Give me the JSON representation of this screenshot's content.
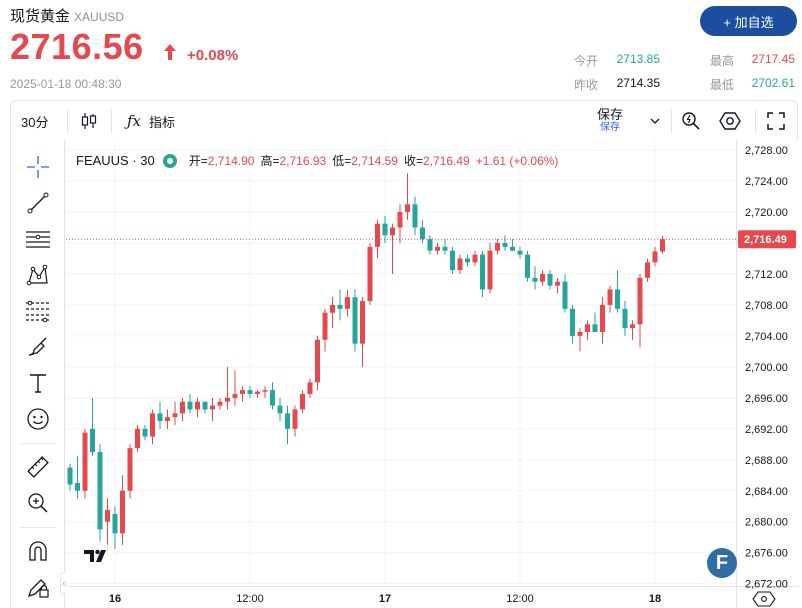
{
  "header": {
    "title": "现货黄金",
    "symbol": "XAUUSD",
    "price": "2716.56",
    "change_pct": "+0.08%",
    "timestamp": "2025-01-18 00:48:30",
    "add_button": "+ 加自选",
    "up_color": "#e5484d",
    "down_color": "#26a69a"
  },
  "stats": {
    "open_label": "今开",
    "open_value": "2713.85",
    "prev_label": "昨收",
    "prev_value": "2714.35",
    "high_label": "最高",
    "high_value": "2717.45",
    "low_label": "最低",
    "low_value": "2702.61"
  },
  "toolbar": {
    "interval": "30分",
    "indicators": "指标",
    "save": "保存",
    "save_sub": "保存"
  },
  "legend": {
    "symbol": "FEAUUS · 30",
    "open_label": "开=",
    "open_value": "2,714.90",
    "high_label": "高=",
    "high_value": "2,716.93",
    "low_label": "低=",
    "low_value": "2,714.59",
    "close_label": "收=",
    "close_value": "2,716.49",
    "change": "+1.61 (+0.06%)"
  },
  "left_tools": [
    "crosshair-icon",
    "trend-line-icon",
    "horizontal-lines-icon",
    "pattern-icon",
    "fib-icon",
    "brush-icon",
    "text-icon",
    "emoji-icon",
    "ruler-icon",
    "zoom-in-icon",
    "magnet-icon",
    "lock-pencil-icon"
  ],
  "chart_data": {
    "type": "candlestick",
    "interval": "30",
    "y_ticks": [
      2728,
      2724,
      2720,
      2716,
      2712,
      2708,
      2704,
      2700,
      2696,
      2692,
      2688,
      2684,
      2680,
      2676,
      2672
    ],
    "y_tick_labels": [
      "2,728.00",
      "2,724.00",
      "2,720.00",
      "2,716.00",
      "2,712.00",
      "2,708.00",
      "2,704.00",
      "2,700.00",
      "2,696.00",
      "2,692.00",
      "2,688.00",
      "2,684.00",
      "2,680.00",
      "2,676.00",
      "2,672.00"
    ],
    "ylim": [
      2671.7,
      2729.3
    ],
    "x_ticks": [
      {
        "index": 6,
        "label": "16"
      },
      {
        "index": 24,
        "label": "12:00"
      },
      {
        "index": 42,
        "label": "17"
      },
      {
        "index": 60,
        "label": "12:00"
      },
      {
        "index": 78,
        "label": "18"
      }
    ],
    "last_price_label": "2,716.49",
    "last_price": 2716.49,
    "candles": [
      {
        "o": 2687.0,
        "h": 2687.5,
        "l": 2684.0,
        "c": 2684.8
      },
      {
        "o": 2685.0,
        "h": 2688.5,
        "l": 2683.0,
        "c": 2684.0
      },
      {
        "o": 2684.0,
        "h": 2692.0,
        "l": 2683.0,
        "c": 2691.5
      },
      {
        "o": 2692.0,
        "h": 2696.0,
        "l": 2688.5,
        "c": 2689.0
      },
      {
        "o": 2689.0,
        "h": 2690.0,
        "l": 2677.0,
        "c": 2679.0
      },
      {
        "o": 2680.0,
        "h": 2683.0,
        "l": 2676.0,
        "c": 2681.5
      },
      {
        "o": 2681.0,
        "h": 2682.0,
        "l": 2676.5,
        "c": 2678.5
      },
      {
        "o": 2678.5,
        "h": 2686.0,
        "l": 2677.0,
        "c": 2684.0
      },
      {
        "o": 2684.0,
        "h": 2690.0,
        "l": 2683.0,
        "c": 2689.5
      },
      {
        "o": 2689.5,
        "h": 2692.5,
        "l": 2689.0,
        "c": 2692.0
      },
      {
        "o": 2692.0,
        "h": 2692.5,
        "l": 2690.5,
        "c": 2691.0
      },
      {
        "o": 2691.0,
        "h": 2694.5,
        "l": 2690.0,
        "c": 2694.0
      },
      {
        "o": 2694.0,
        "h": 2695.5,
        "l": 2692.0,
        "c": 2693.0
      },
      {
        "o": 2693.0,
        "h": 2694.5,
        "l": 2692.0,
        "c": 2693.5
      },
      {
        "o": 2693.5,
        "h": 2695.5,
        "l": 2692.5,
        "c": 2694.0
      },
      {
        "o": 2694.0,
        "h": 2696.0,
        "l": 2693.0,
        "c": 2695.5
      },
      {
        "o": 2695.5,
        "h": 2696.5,
        "l": 2694.0,
        "c": 2694.5
      },
      {
        "o": 2694.5,
        "h": 2696.0,
        "l": 2693.5,
        "c": 2695.5
      },
      {
        "o": 2695.5,
        "h": 2695.5,
        "l": 2694.0,
        "c": 2694.5
      },
      {
        "o": 2694.5,
        "h": 2696.0,
        "l": 2693.0,
        "c": 2695.0
      },
      {
        "o": 2695.0,
        "h": 2696.0,
        "l": 2694.5,
        "c": 2695.5
      },
      {
        "o": 2695.5,
        "h": 2700.0,
        "l": 2694.5,
        "c": 2696.0
      },
      {
        "o": 2696.0,
        "h": 2699.5,
        "l": 2695.0,
        "c": 2696.5
      },
      {
        "o": 2696.5,
        "h": 2697.5,
        "l": 2695.5,
        "c": 2697.0
      },
      {
        "o": 2697.0,
        "h": 2697.5,
        "l": 2696.0,
        "c": 2696.5
      },
      {
        "o": 2696.5,
        "h": 2697.0,
        "l": 2696.0,
        "c": 2696.8
      },
      {
        "o": 2696.8,
        "h": 2697.5,
        "l": 2696.0,
        "c": 2697.0
      },
      {
        "o": 2697.0,
        "h": 2698.0,
        "l": 2694.5,
        "c": 2695.0
      },
      {
        "o": 2695.0,
        "h": 2696.0,
        "l": 2693.0,
        "c": 2694.0
      },
      {
        "o": 2694.0,
        "h": 2695.0,
        "l": 2690.0,
        "c": 2692.0
      },
      {
        "o": 2692.0,
        "h": 2695.0,
        "l": 2691.0,
        "c": 2694.5
      },
      {
        "o": 2694.5,
        "h": 2697.0,
        "l": 2694.0,
        "c": 2696.5
      },
      {
        "o": 2696.5,
        "h": 2698.5,
        "l": 2696.0,
        "c": 2698.0
      },
      {
        "o": 2698.0,
        "h": 2704.0,
        "l": 2697.0,
        "c": 2703.5
      },
      {
        "o": 2703.5,
        "h": 2707.5,
        "l": 2702.0,
        "c": 2707.0
      },
      {
        "o": 2707.0,
        "h": 2709.0,
        "l": 2705.0,
        "c": 2708.0
      },
      {
        "o": 2708.0,
        "h": 2710.0,
        "l": 2706.0,
        "c": 2707.5
      },
      {
        "o": 2707.5,
        "h": 2710.0,
        "l": 2706.5,
        "c": 2709.0
      },
      {
        "o": 2709.0,
        "h": 2710.0,
        "l": 2702.0,
        "c": 2703.0
      },
      {
        "o": 2703.0,
        "h": 2709.0,
        "l": 2700.0,
        "c": 2708.5
      },
      {
        "o": 2708.5,
        "h": 2716.0,
        "l": 2708.0,
        "c": 2715.5
      },
      {
        "o": 2715.5,
        "h": 2719.0,
        "l": 2714.0,
        "c": 2718.5
      },
      {
        "o": 2718.5,
        "h": 2719.5,
        "l": 2716.0,
        "c": 2717.0
      },
      {
        "o": 2717.0,
        "h": 2718.5,
        "l": 2712.0,
        "c": 2718.0
      },
      {
        "o": 2718.0,
        "h": 2721.0,
        "l": 2716.0,
        "c": 2720.0
      },
      {
        "o": 2720.0,
        "h": 2725.0,
        "l": 2719.0,
        "c": 2721.0
      },
      {
        "o": 2721.0,
        "h": 2722.0,
        "l": 2717.0,
        "c": 2718.0
      },
      {
        "o": 2718.0,
        "h": 2719.0,
        "l": 2716.0,
        "c": 2716.5
      },
      {
        "o": 2716.5,
        "h": 2717.0,
        "l": 2714.5,
        "c": 2715.0
      },
      {
        "o": 2715.0,
        "h": 2716.0,
        "l": 2714.5,
        "c": 2715.5
      },
      {
        "o": 2715.5,
        "h": 2716.5,
        "l": 2714.5,
        "c": 2715.0
      },
      {
        "o": 2715.0,
        "h": 2715.5,
        "l": 2712.0,
        "c": 2712.5
      },
      {
        "o": 2712.5,
        "h": 2714.5,
        "l": 2712.0,
        "c": 2714.0
      },
      {
        "o": 2714.0,
        "h": 2714.5,
        "l": 2713.0,
        "c": 2713.5
      },
      {
        "o": 2713.5,
        "h": 2715.0,
        "l": 2713.0,
        "c": 2714.5
      },
      {
        "o": 2714.5,
        "h": 2715.0,
        "l": 2709.0,
        "c": 2710.0
      },
      {
        "o": 2710.0,
        "h": 2716.0,
        "l": 2709.5,
        "c": 2715.0
      },
      {
        "o": 2715.0,
        "h": 2716.5,
        "l": 2714.5,
        "c": 2716.0
      },
      {
        "o": 2716.0,
        "h": 2717.0,
        "l": 2715.0,
        "c": 2715.5
      },
      {
        "o": 2715.5,
        "h": 2716.5,
        "l": 2715.0,
        "c": 2715.0
      },
      {
        "o": 2715.0,
        "h": 2715.5,
        "l": 2714.0,
        "c": 2714.5
      },
      {
        "o": 2714.5,
        "h": 2715.0,
        "l": 2711.0,
        "c": 2711.5
      },
      {
        "o": 2711.5,
        "h": 2713.0,
        "l": 2710.0,
        "c": 2711.0
      },
      {
        "o": 2711.0,
        "h": 2712.5,
        "l": 2710.5,
        "c": 2712.0
      },
      {
        "o": 2712.0,
        "h": 2712.5,
        "l": 2710.0,
        "c": 2710.5
      },
      {
        "o": 2710.5,
        "h": 2711.5,
        "l": 2709.5,
        "c": 2711.0
      },
      {
        "o": 2711.0,
        "h": 2712.0,
        "l": 2707.0,
        "c": 2707.5
      },
      {
        "o": 2707.5,
        "h": 2708.0,
        "l": 2703.0,
        "c": 2704.0
      },
      {
        "o": 2704.0,
        "h": 2705.0,
        "l": 2702.0,
        "c": 2704.5
      },
      {
        "o": 2704.5,
        "h": 2706.0,
        "l": 2703.5,
        "c": 2705.5
      },
      {
        "o": 2705.5,
        "h": 2707.0,
        "l": 2704.5,
        "c": 2704.5
      },
      {
        "o": 2704.5,
        "h": 2709.0,
        "l": 2703.0,
        "c": 2708.0
      },
      {
        "o": 2708.0,
        "h": 2710.5,
        "l": 2707.0,
        "c": 2710.0
      },
      {
        "o": 2710.0,
        "h": 2712.5,
        "l": 2707.0,
        "c": 2707.5
      },
      {
        "o": 2707.5,
        "h": 2708.5,
        "l": 2704.0,
        "c": 2705.0
      },
      {
        "o": 2705.0,
        "h": 2706.0,
        "l": 2703.5,
        "c": 2705.5
      },
      {
        "o": 2705.5,
        "h": 2712.0,
        "l": 2702.5,
        "c": 2711.5
      },
      {
        "o": 2711.5,
        "h": 2714.0,
        "l": 2711.0,
        "c": 2713.5
      },
      {
        "o": 2713.5,
        "h": 2715.5,
        "l": 2713.0,
        "c": 2714.9
      },
      {
        "o": 2714.9,
        "h": 2716.9,
        "l": 2714.6,
        "c": 2716.49
      }
    ]
  }
}
